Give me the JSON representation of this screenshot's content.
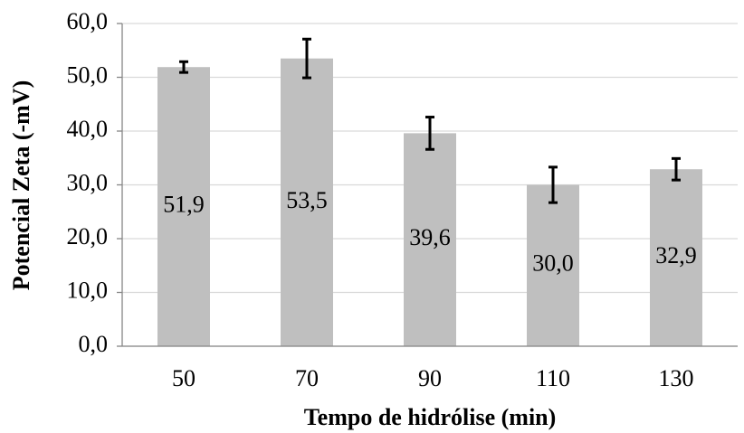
{
  "chart_data": {
    "type": "bar",
    "x_label": "Tempo de hidrólise (min)",
    "y_label": "Potencial Zeta (-mV)",
    "categories": [
      "50",
      "70",
      "90",
      "110",
      "130"
    ],
    "values": [
      51.9,
      53.5,
      39.6,
      30.0,
      32.9
    ],
    "value_labels": [
      "51,9",
      "53,5",
      "39,6",
      "30,0",
      "32,9"
    ],
    "errors": [
      1.0,
      3.6,
      3.0,
      3.3,
      2.0
    ],
    "color": "#bfbfbf",
    "ylim": [
      0,
      60
    ],
    "yticks": [
      {
        "value": 0,
        "label": "0,0"
      },
      {
        "value": 10,
        "label": "10,0"
      },
      {
        "value": 20,
        "label": "20,0"
      },
      {
        "value": 30,
        "label": "30,0"
      },
      {
        "value": 40,
        "label": "40,0"
      },
      {
        "value": 50,
        "label": "50,0"
      },
      {
        "value": 60,
        "label": "60,0"
      }
    ],
    "grid": true
  }
}
